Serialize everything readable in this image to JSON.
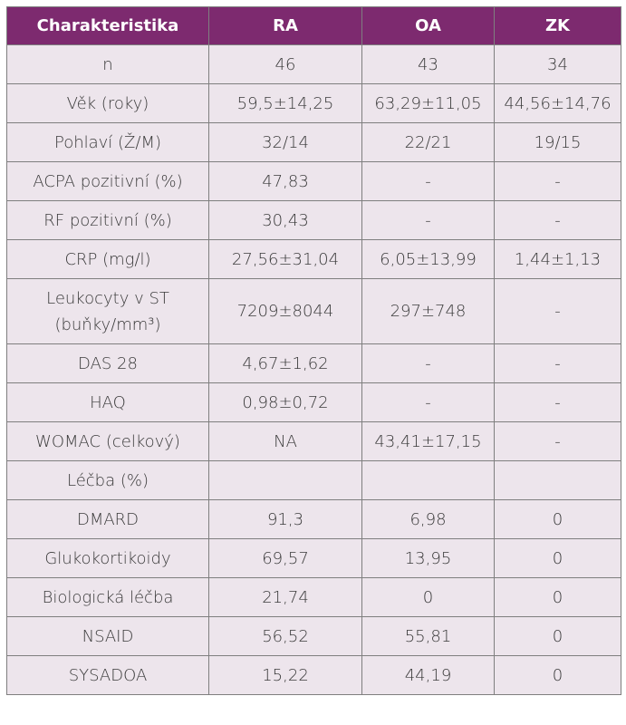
{
  "table": {
    "headers": [
      "Charakteristika",
      "RA",
      "OA",
      "ZK"
    ],
    "rows": [
      [
        "n",
        "46",
        "43",
        "34"
      ],
      [
        "Věk (roky)",
        "59,5±14,25",
        "63,29±11,05",
        "44,56±14,76"
      ],
      [
        "Pohlaví (Ž/M)",
        "32/14",
        "22/21",
        "19/15"
      ],
      [
        "ACPA pozitivní (%)",
        "47,83",
        "-",
        "-"
      ],
      [
        "RF pozitivní (%)",
        "30,43",
        "-",
        "-"
      ],
      [
        "CRP (mg/l)",
        "27,56±31,04",
        "6,05±13,99",
        "1,44±1,13"
      ],
      [
        "Leukocyty v ST (buňky/mm³)",
        "7209±8044",
        "297±748",
        "-"
      ],
      [
        "DAS 28",
        "4,67±1,62",
        "-",
        "-"
      ],
      [
        "HAQ",
        "0,98±0,72",
        "-",
        "-"
      ],
      [
        "WOMAC (celkový)",
        "NA",
        "43,41±17,15",
        "-"
      ],
      [
        "Léčba (%)",
        "",
        "",
        ""
      ],
      [
        "DMARD",
        "91,3",
        "6,98",
        "0"
      ],
      [
        "Glukokortikoidy",
        "69,57",
        "13,95",
        "0"
      ],
      [
        "Biologická léčba",
        "21,74",
        "0",
        "0"
      ],
      [
        "NSAID",
        "56,52",
        "55,81",
        "0"
      ],
      [
        "SYSADOA",
        "15,22",
        "44,19",
        "0"
      ]
    ],
    "tall_row_lines": [
      "Leukocyty v ST",
      "(buňky/mm³)"
    ]
  }
}
